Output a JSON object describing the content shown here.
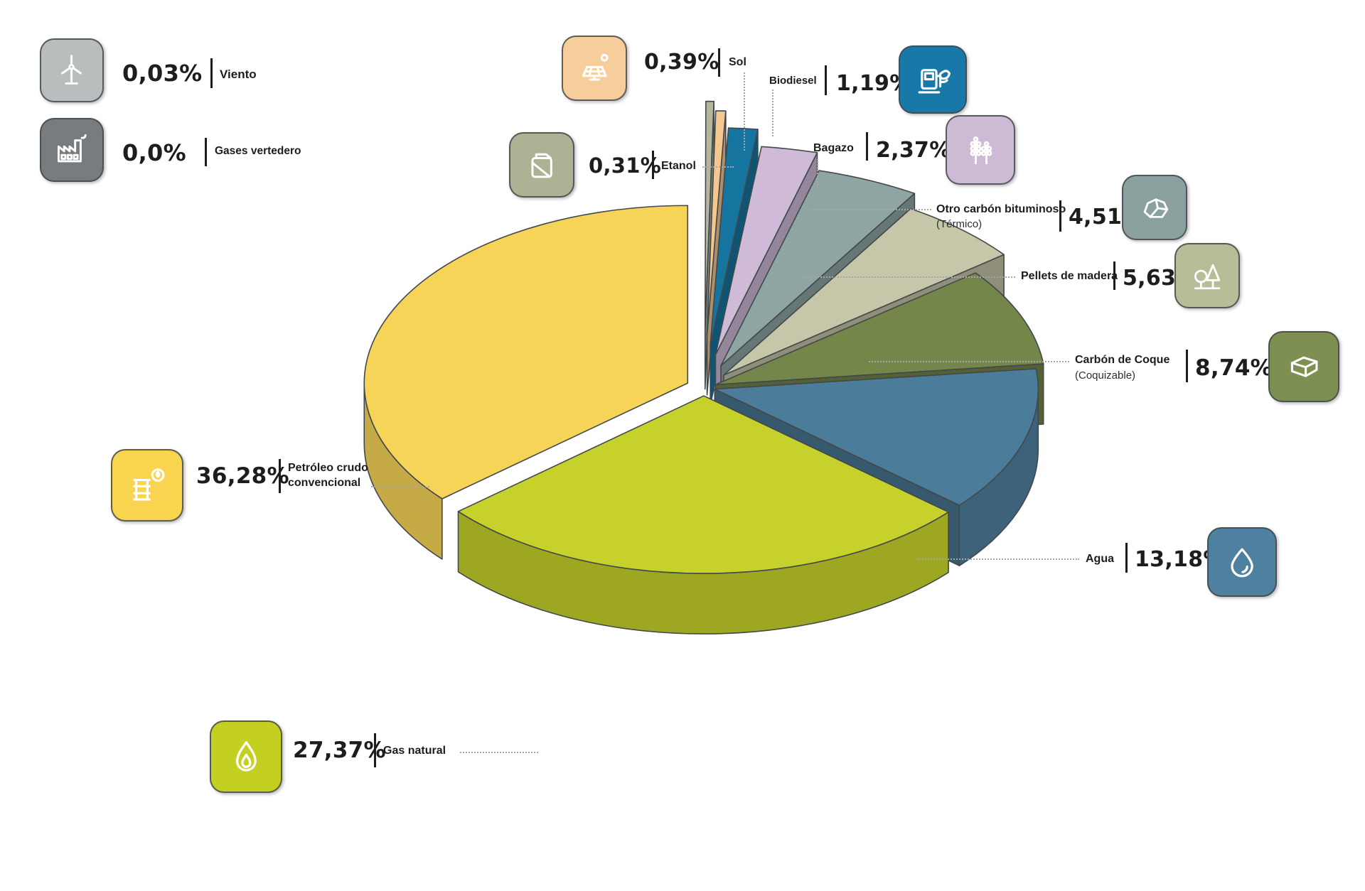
{
  "chart_data": {
    "type": "pie",
    "style": "3d-exploded",
    "unit": "%",
    "decimal_separator": ",",
    "order": "clockwise-from-top",
    "slices": [
      {
        "label": "Viento",
        "display": "0,03%",
        "value": 0.03,
        "color": "#b9bdbd",
        "tile_color": "#babdbe",
        "icon": "wind-turbine-icon"
      },
      {
        "label": "Gases vertedero",
        "display": "0,0%",
        "value": 0.0,
        "color": "#7b7f80",
        "tile_color": "#797c7f",
        "icon": "factory-icon"
      },
      {
        "label": "Etanol",
        "display": "0,31%",
        "value": 0.31,
        "color": "#b5b69a",
        "tile_color": "#aeb295",
        "icon": "fuel-can-icon"
      },
      {
        "label": "Sol",
        "display": "0,39%",
        "value": 0.39,
        "color": "#f3c78f",
        "tile_color": "#f7cd9c",
        "icon": "solar-panel-icon"
      },
      {
        "label": "Biodiesel",
        "display": "1,19%",
        "value": 1.19,
        "color": "#15759f",
        "tile_color": "#1878a8",
        "icon": "fuel-pump-leaf-icon"
      },
      {
        "label": "Bagazo",
        "display": "2,37%",
        "value": 2.37,
        "color": "#cfbbd7",
        "tile_color": "#cdbad5",
        "icon": "sugarcane-icon"
      },
      {
        "label": "Otro carbón bituminoso",
        "sublabel": "(Térmico)",
        "label_lines": [
          "Otro carbón bituminoso",
          "(Térmico)"
        ],
        "display": "4,51%",
        "value": 4.51,
        "color": "#8fa5a3",
        "tile_color": "#8ba19f",
        "icon": "coal-rock-icon"
      },
      {
        "label": "Pellets de madera",
        "display": "5,63%",
        "value": 5.63,
        "color": "#c6c7a8",
        "tile_color": "#b8bc97",
        "icon": "trees-icon"
      },
      {
        "label": "Carbón de Coque",
        "sublabel": "(Coquizable)",
        "label_lines": [
          "Carbón de Coque",
          "(Coquizable)"
        ],
        "display": "8,74%",
        "value": 8.74,
        "color": "#75864a",
        "tile_color": "#7d9052",
        "icon": "coke-block-icon"
      },
      {
        "label": "Agua",
        "display": "13,18%",
        "value": 13.18,
        "color": "#4b7c99",
        "tile_color": "#4e81a0",
        "icon": "water-drop-icon"
      },
      {
        "label": "Gas natural",
        "display": "27,37%",
        "value": 27.37,
        "color": "#c6d12b",
        "tile_color": "#c3cf21",
        "icon": "flame-icon"
      },
      {
        "label": "Petróleo crudo convencional",
        "label_lines": [
          "Petróleo crudo",
          "convencional"
        ],
        "display": "36,28%",
        "value": 36.28,
        "color": "#f6d458",
        "tile_color": "#f8d44f",
        "icon": "oil-barrel-icon"
      }
    ]
  }
}
